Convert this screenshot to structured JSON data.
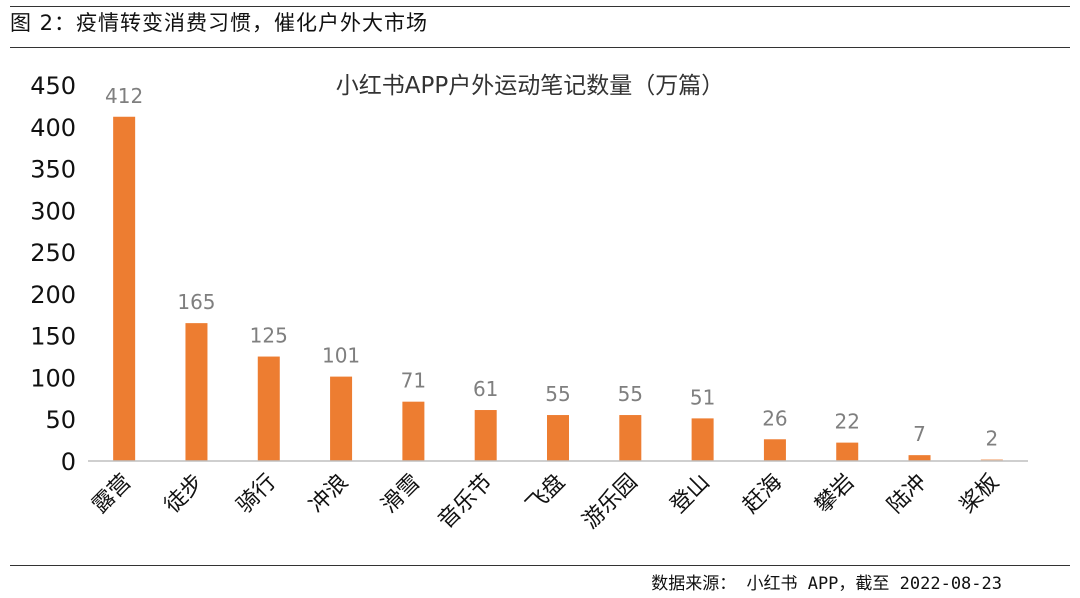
{
  "figure": {
    "title": "图 2：疫情转变消费习惯，催化户外大市场",
    "source": "数据来源： 小红书 APP，截至 2022-08-23"
  },
  "chart_data": {
    "type": "bar",
    "title": "小红书APP户外运动笔记数量（万篇）",
    "categories": [
      "露营",
      "徒步",
      "骑行",
      "冲浪",
      "滑雪",
      "音乐节",
      "飞盘",
      "游乐园",
      "登山",
      "赶海",
      "攀岩",
      "陆冲",
      "桨板"
    ],
    "values": [
      412,
      165,
      125,
      101,
      71,
      61,
      55,
      55,
      51,
      26,
      22,
      7,
      2
    ],
    "ylim": [
      0,
      450
    ],
    "yticks": [
      0,
      50,
      100,
      150,
      200,
      250,
      300,
      350,
      400,
      450
    ],
    "grid": false,
    "legend": "none",
    "bar_color": "#ED7D31",
    "last_bar_color": "#F4B183",
    "label_color": "#7f7f7f"
  }
}
